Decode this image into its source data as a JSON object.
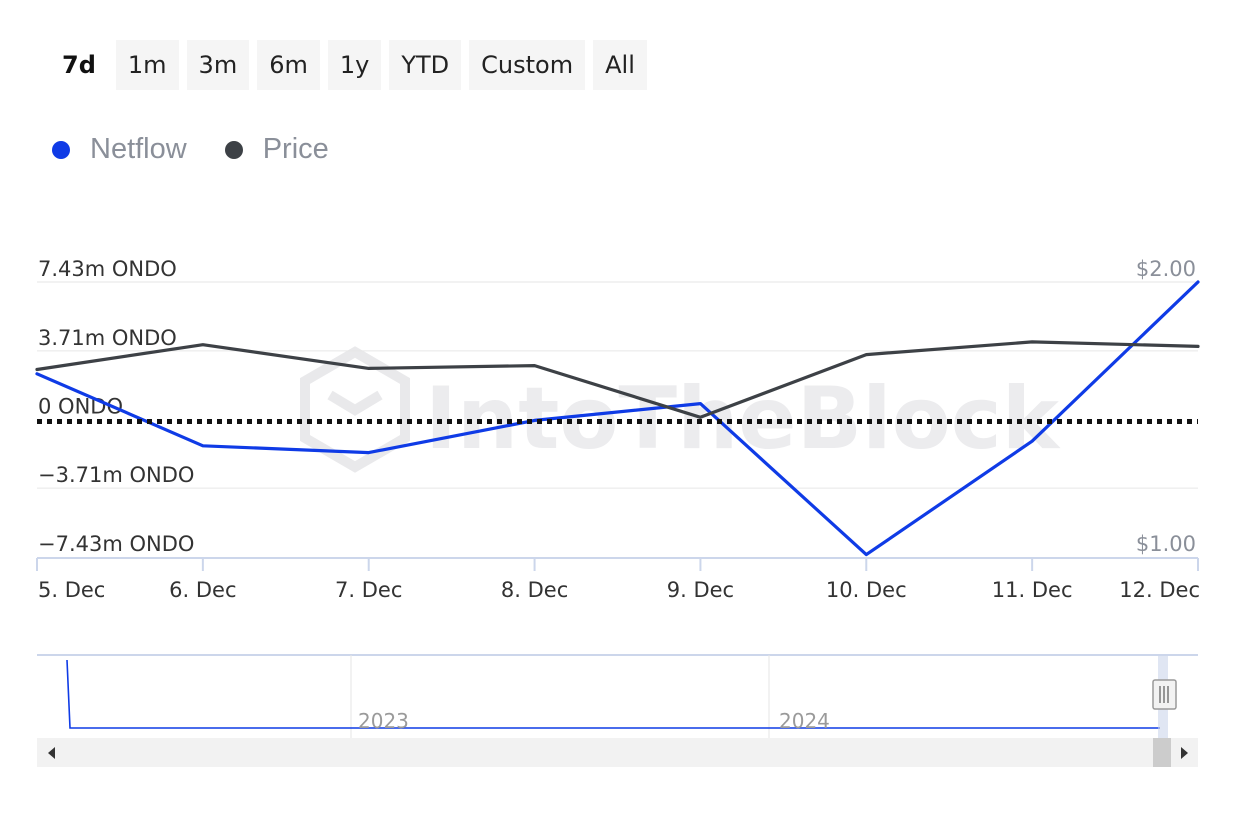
{
  "range_selector": {
    "buttons": [
      "7d",
      "1m",
      "3m",
      "6m",
      "1y",
      "YTD",
      "Custom",
      "All"
    ],
    "active": "7d"
  },
  "legend": [
    {
      "label": "Netflow",
      "color": "#0f3be6"
    },
    {
      "label": "Price",
      "color": "#3d4146"
    }
  ],
  "watermark": "IntoTheBlock",
  "chart_data": {
    "type": "line",
    "categories": [
      "5. Dec",
      "6. Dec",
      "7. Dec",
      "8. Dec",
      "9. Dec",
      "10. Dec",
      "11. Dec",
      "12. Dec"
    ],
    "series": [
      {
        "name": "Netflow",
        "axis": "left",
        "color": "#0f3be6",
        "values": [
          2.47,
          -1.42,
          -1.79,
          -0.05,
          0.86,
          -7.3,
          -1.17,
          7.43
        ]
      },
      {
        "name": "Price",
        "axis": "right",
        "color": "#3d4146",
        "values": [
          1.682,
          1.772,
          1.686,
          1.696,
          1.508,
          1.736,
          1.782,
          1.766
        ]
      }
    ],
    "y_left": {
      "ticks": [
        7.43,
        3.71,
        0,
        -3.71,
        -7.43
      ],
      "tick_labels": [
        "7.43m ONDO",
        "3.71m ONDO",
        "0 ONDO",
        "−3.71m ONDO",
        "−7.43m ONDO"
      ],
      "ylim": [
        -7.43,
        7.43
      ]
    },
    "y_right": {
      "tick_labels": [
        "$2.00",
        "$1.00"
      ],
      "ylim": [
        1.0,
        2.0
      ]
    },
    "zero_line": "dotted",
    "grid": true
  },
  "navigator": {
    "labels": [
      "2023",
      "2024"
    ]
  },
  "colors": {
    "netflow": "#0f3be6",
    "price": "#3d4146",
    "grid": "#e6e6e6",
    "axis": "#ccd6eb"
  }
}
